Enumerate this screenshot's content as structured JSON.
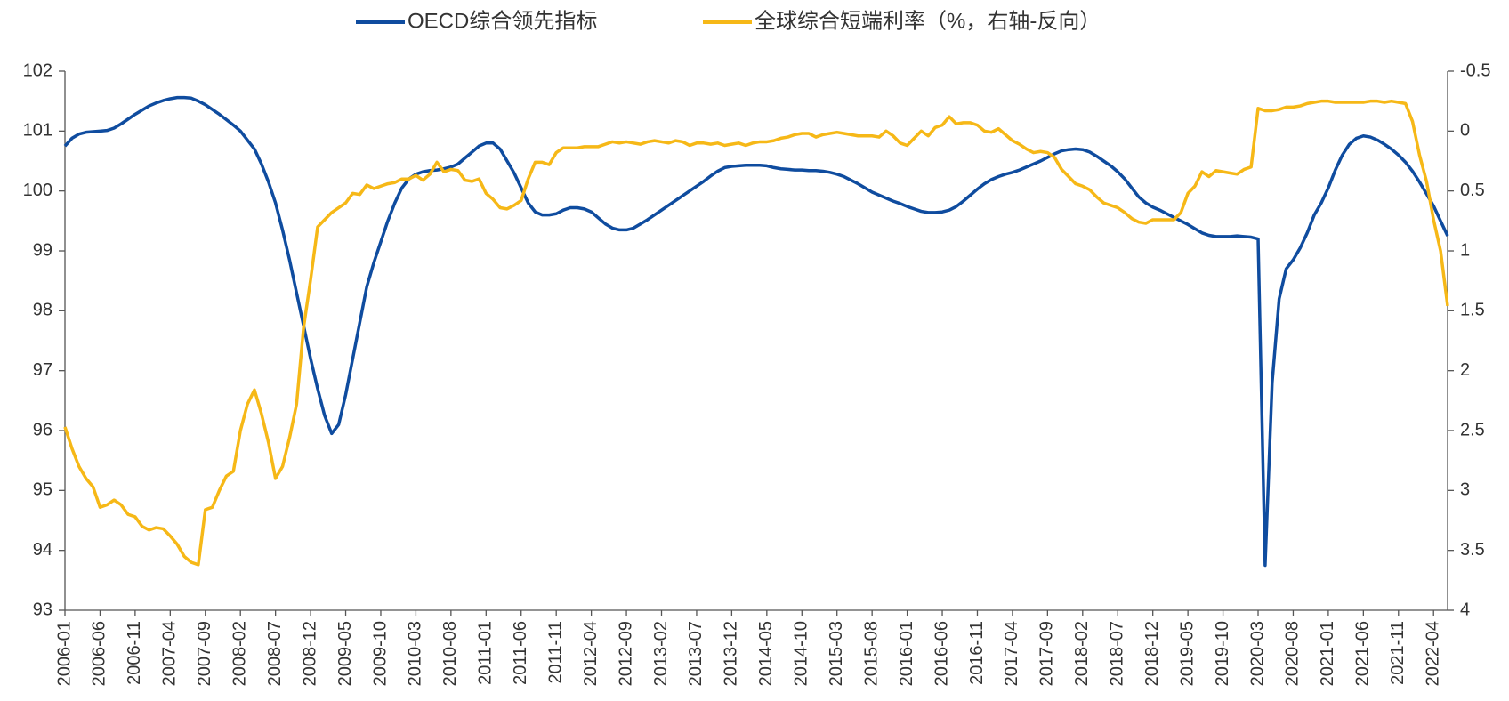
{
  "chart_data": {
    "type": "line",
    "legend": "top",
    "categories": [
      "2006-01",
      null,
      null,
      null,
      null,
      "2006-06",
      null,
      null,
      null,
      null,
      "2006-11",
      null,
      null,
      null,
      null,
      "2007-04",
      null,
      null,
      null,
      null,
      "2007-09",
      null,
      null,
      null,
      null,
      "2008-02",
      null,
      null,
      null,
      null,
      "2008-07",
      null,
      null,
      null,
      null,
      "2008-12",
      null,
      null,
      null,
      null,
      "2009-05",
      null,
      null,
      null,
      null,
      "2009-10",
      null,
      null,
      null,
      null,
      "2010-03",
      null,
      null,
      null,
      null,
      "2010-08",
      null,
      null,
      null,
      null,
      "2011-01",
      null,
      null,
      null,
      null,
      "2011-06",
      null,
      null,
      null,
      null,
      "2011-11",
      null,
      null,
      null,
      null,
      "2012-04",
      null,
      null,
      null,
      null,
      "2012-09",
      null,
      null,
      null,
      null,
      "2013-02",
      null,
      null,
      null,
      null,
      "2013-07",
      null,
      null,
      null,
      null,
      "2013-12",
      null,
      null,
      null,
      null,
      "2014-05",
      null,
      null,
      null,
      null,
      "2014-10",
      null,
      null,
      null,
      null,
      "2015-03",
      null,
      null,
      null,
      null,
      "2015-08",
      null,
      null,
      null,
      null,
      "2016-01",
      null,
      null,
      null,
      null,
      "2016-06",
      null,
      null,
      null,
      null,
      "2016-11",
      null,
      null,
      null,
      null,
      "2017-04",
      null,
      null,
      null,
      null,
      "2017-09",
      null,
      null,
      null,
      null,
      "2018-02",
      null,
      null,
      null,
      null,
      "2018-07",
      null,
      null,
      null,
      null,
      "2018-12",
      null,
      null,
      null,
      null,
      "2019-05",
      null,
      null,
      null,
      null,
      "2019-10",
      null,
      null,
      null,
      null,
      "2020-03",
      null,
      null,
      null,
      null,
      "2020-08",
      null,
      null,
      null,
      null,
      "2021-01",
      null,
      null,
      null,
      null,
      "2021-06",
      null,
      null,
      null,
      null,
      "2021-11",
      null,
      null,
      null,
      null,
      "2022-04",
      null,
      null
    ],
    "series": [
      {
        "name": "OECD综合领先指标",
        "color": "#0f4c9f",
        "axis": "y",
        "values": [
          100.75,
          100.88,
          100.95,
          100.98,
          100.99,
          101.0,
          101.01,
          101.05,
          101.12,
          101.2,
          101.28,
          101.35,
          101.42,
          101.47,
          101.51,
          101.54,
          101.56,
          101.56,
          101.55,
          101.5,
          101.44,
          101.36,
          101.28,
          101.19,
          101.1,
          101.0,
          100.85,
          100.7,
          100.45,
          100.15,
          99.8,
          99.35,
          98.85,
          98.3,
          97.75,
          97.2,
          96.7,
          96.25,
          95.95,
          96.1,
          96.6,
          97.2,
          97.8,
          98.4,
          98.8,
          99.15,
          99.5,
          99.8,
          100.05,
          100.2,
          100.28,
          100.32,
          100.34,
          100.35,
          100.37,
          100.4,
          100.45,
          100.55,
          100.65,
          100.75,
          100.8,
          100.8,
          100.7,
          100.5,
          100.3,
          100.05,
          99.8,
          99.65,
          99.6,
          99.6,
          99.62,
          99.68,
          99.72,
          99.72,
          99.7,
          99.65,
          99.55,
          99.45,
          99.38,
          99.35,
          99.35,
          99.38,
          99.45,
          99.52,
          99.6,
          99.68,
          99.76,
          99.84,
          99.92,
          100.0,
          100.08,
          100.16,
          100.25,
          100.33,
          100.39,
          100.41,
          100.42,
          100.43,
          100.43,
          100.43,
          100.42,
          100.39,
          100.37,
          100.36,
          100.35,
          100.35,
          100.34,
          100.34,
          100.33,
          100.31,
          100.28,
          100.24,
          100.18,
          100.12,
          100.05,
          99.98,
          99.93,
          99.88,
          99.83,
          99.79,
          99.74,
          99.7,
          99.66,
          99.64,
          99.64,
          99.65,
          99.68,
          99.74,
          99.83,
          99.93,
          100.03,
          100.12,
          100.19,
          100.24,
          100.28,
          100.31,
          100.35,
          100.4,
          100.45,
          100.5,
          100.56,
          100.62,
          100.67,
          100.69,
          100.7,
          100.69,
          100.65,
          100.58,
          100.5,
          100.42,
          100.32,
          100.2,
          100.05,
          99.9,
          99.8,
          99.73,
          99.68,
          99.62,
          99.56,
          99.5,
          99.44,
          99.37,
          99.3,
          99.26,
          99.24,
          99.24,
          99.24,
          99.25,
          99.24,
          99.23,
          99.2,
          93.75,
          96.8,
          98.2,
          98.7,
          98.85,
          99.05,
          99.3,
          99.6,
          99.8,
          100.05,
          100.35,
          100.6,
          100.78,
          100.88,
          100.92,
          100.9,
          100.85,
          100.78,
          100.7,
          100.6,
          100.48,
          100.33,
          100.15,
          99.95,
          99.75,
          99.5,
          99.25
        ]
      },
      {
        "name": "全球综合短端利率（%，右轴-反向）",
        "color": "#f6b817",
        "axis": "y2",
        "values": [
          2.47,
          2.65,
          2.8,
          2.9,
          2.97,
          3.14,
          3.12,
          3.08,
          3.12,
          3.2,
          3.22,
          3.3,
          3.33,
          3.31,
          3.32,
          3.38,
          3.45,
          3.55,
          3.6,
          3.62,
          3.16,
          3.14,
          3.0,
          2.88,
          2.84,
          2.5,
          2.28,
          2.16,
          2.36,
          2.6,
          2.9,
          2.8,
          2.56,
          2.28,
          1.64,
          1.24,
          0.8,
          0.74,
          0.68,
          0.64,
          0.6,
          0.52,
          0.53,
          0.45,
          0.48,
          0.46,
          0.44,
          0.43,
          0.4,
          0.4,
          0.37,
          0.41,
          0.36,
          0.26,
          0.34,
          0.32,
          0.33,
          0.41,
          0.42,
          0.4,
          0.52,
          0.57,
          0.64,
          0.65,
          0.62,
          0.58,
          0.4,
          0.26,
          0.26,
          0.28,
          0.18,
          0.14,
          0.14,
          0.14,
          0.13,
          0.13,
          0.13,
          0.11,
          0.09,
          0.1,
          0.09,
          0.1,
          0.11,
          0.09,
          0.08,
          0.09,
          0.1,
          0.08,
          0.09,
          0.12,
          0.1,
          0.1,
          0.11,
          0.1,
          0.12,
          0.11,
          0.1,
          0.12,
          0.1,
          0.09,
          0.09,
          0.08,
          0.06,
          0.05,
          0.03,
          0.02,
          0.02,
          0.05,
          0.03,
          0.02,
          0.01,
          0.02,
          0.03,
          0.04,
          0.04,
          0.04,
          0.05,
          0.0,
          0.04,
          0.1,
          0.12,
          0.06,
          0.0,
          0.04,
          -0.03,
          -0.05,
          -0.12,
          -0.06,
          -0.07,
          -0.07,
          -0.05,
          0.0,
          0.01,
          -0.02,
          0.03,
          0.08,
          0.11,
          0.15,
          0.18,
          0.17,
          0.18,
          0.22,
          0.32,
          0.38,
          0.44,
          0.46,
          0.49,
          0.55,
          0.6,
          0.62,
          0.64,
          0.68,
          0.73,
          0.76,
          0.77,
          0.74,
          0.74,
          0.74,
          0.74,
          0.68,
          0.52,
          0.46,
          0.34,
          0.38,
          0.33,
          0.34,
          0.35,
          0.36,
          0.32,
          0.3,
          -0.19,
          -0.17,
          -0.17,
          -0.18,
          -0.2,
          -0.2,
          -0.21,
          -0.23,
          -0.24,
          -0.25,
          -0.25,
          -0.24,
          -0.24,
          -0.24,
          -0.24,
          -0.24,
          -0.25,
          -0.25,
          -0.24,
          -0.25,
          -0.24,
          -0.23,
          -0.08,
          0.2,
          0.42,
          0.74,
          1.0,
          1.46
        ]
      }
    ],
    "ylim": [
      93,
      102
    ],
    "yticks": [
      93,
      94,
      95,
      96,
      97,
      98,
      99,
      100,
      101,
      102
    ],
    "y2lim": [
      4,
      -0.5
    ],
    "y2ticks": [
      4,
      3.5,
      3,
      2.5,
      2,
      1.5,
      1,
      0.5,
      0,
      -0.5
    ]
  }
}
